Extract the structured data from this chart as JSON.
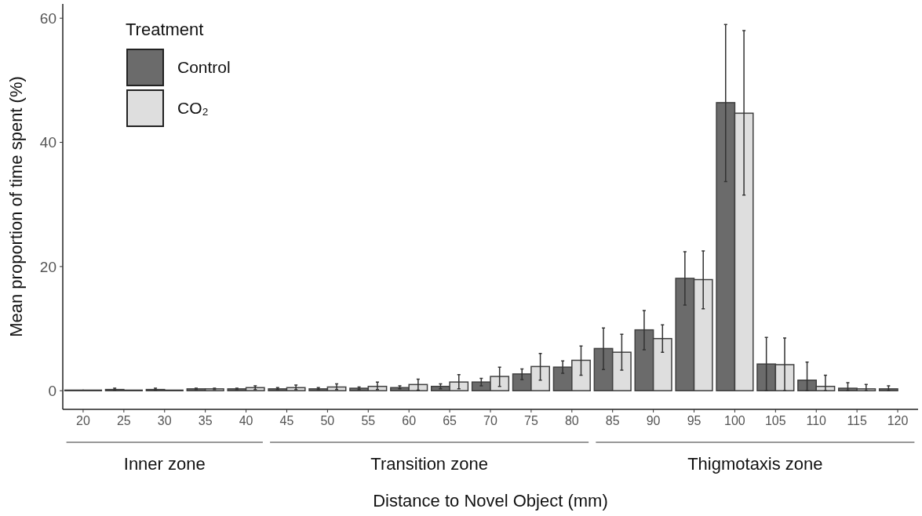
{
  "chart_data": {
    "type": "bar",
    "xlabel": "Distance to Novel Object (mm)",
    "ylabel": "Mean proportion of time spent (%)",
    "legend_title": "Treatment",
    "categories": [
      "20",
      "25",
      "30",
      "35",
      "40",
      "45",
      "50",
      "55",
      "60",
      "65",
      "70",
      "75",
      "80",
      "85",
      "90",
      "95",
      "100",
      "105",
      "110",
      "115",
      "120"
    ],
    "series": [
      {
        "name": "Control",
        "color": "#6b6b6b",
        "values": [
          0.1,
          0.2,
          0.2,
          0.3,
          0.3,
          0.3,
          0.3,
          0.4,
          0.5,
          0.7,
          1.4,
          2.7,
          3.8,
          6.8,
          9.8,
          18.1,
          46.4,
          4.3,
          1.7,
          0.4,
          0.3
        ],
        "errors": [
          null,
          [
            0.1,
            0.4
          ],
          [
            0.1,
            0.4
          ],
          [
            0.2,
            0.4
          ],
          [
            0.2,
            0.4
          ],
          [
            0.2,
            0.5
          ],
          [
            0.2,
            0.5
          ],
          [
            0.2,
            0.6
          ],
          [
            0.3,
            0.8
          ],
          [
            0.3,
            1.1
          ],
          [
            0.8,
            2.0
          ],
          [
            1.8,
            3.5
          ],
          [
            2.8,
            4.8
          ],
          [
            3.4,
            10.1
          ],
          [
            6.6,
            12.9
          ],
          [
            13.8,
            22.4
          ],
          [
            33.7,
            59.0
          ],
          [
            0,
            8.6
          ],
          [
            0,
            4.6
          ],
          [
            0,
            1.3
          ],
          [
            0,
            0.8
          ]
        ]
      },
      {
        "name": "CO₂",
        "color": "#dedede",
        "values": [
          0.1,
          0.1,
          0.1,
          0.3,
          0.5,
          0.5,
          0.6,
          0.7,
          1.0,
          1.4,
          2.3,
          3.9,
          4.9,
          6.2,
          8.4,
          17.9,
          44.7,
          4.2,
          0.7,
          0.3,
          0
        ],
        "errors": [
          null,
          null,
          null,
          [
            0.2,
            0.4
          ],
          [
            0.2,
            0.8
          ],
          [
            0.2,
            0.9
          ],
          [
            0.2,
            1.1
          ],
          [
            0.2,
            1.4
          ],
          [
            0.1,
            1.85
          ],
          [
            0.3,
            2.6
          ],
          [
            0.7,
            3.8
          ],
          [
            1.7,
            6.0
          ],
          [
            2.5,
            7.2
          ],
          [
            3.3,
            9.1
          ],
          [
            6.2,
            10.6
          ],
          [
            13.2,
            22.5
          ],
          [
            31.5,
            58.0
          ],
          [
            0,
            8.5
          ],
          [
            0,
            2.5
          ],
          [
            0,
            1.0
          ],
          null
        ]
      }
    ],
    "ylim": [
      -3,
      62.3
    ],
    "yticks": [
      0,
      20,
      40,
      60
    ],
    "grid": false,
    "legend": "top left",
    "annotations": [
      "Inner zone",
      "Transition zone",
      "Thigmotaxis zone"
    ]
  }
}
